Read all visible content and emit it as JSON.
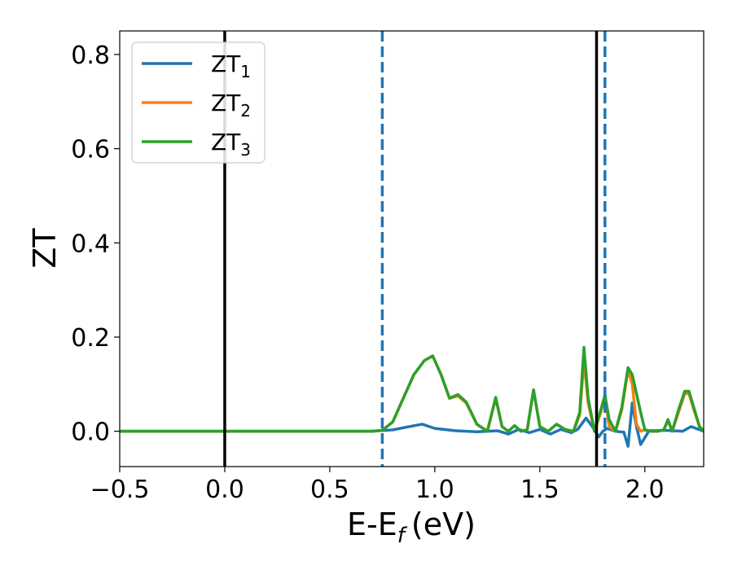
{
  "chart_data": {
    "type": "line",
    "xlabel": "E-E",
    "xlabel_sub": "f",
    "xlabel_unit": "(eV)",
    "ylabel": "ZT",
    "xlim": [
      -0.5,
      2.28
    ],
    "ylim": [
      -0.075,
      0.85
    ],
    "xticks": [
      -0.5,
      0.0,
      0.5,
      1.0,
      1.5,
      2.0
    ],
    "xtick_labels": [
      "−0.5",
      "0.0",
      "0.5",
      "1.0",
      "1.5",
      "2.0"
    ],
    "yticks": [
      0.0,
      0.2,
      0.4,
      0.6,
      0.8
    ],
    "ytick_labels": [
      "0.0",
      "0.2",
      "0.4",
      "0.6",
      "0.8"
    ],
    "grid": false,
    "legend_position": "top-left",
    "vlines": [
      {
        "x": 0.0,
        "style": "solid",
        "color": "#000000"
      },
      {
        "x": 1.77,
        "style": "solid",
        "color": "#000000"
      },
      {
        "x": 0.75,
        "style": "dashed",
        "color": "#1f77b4"
      },
      {
        "x": 1.81,
        "style": "dashed",
        "color": "#1f77b4"
      }
    ],
    "series": [
      {
        "name": "ZT",
        "subscript": "1",
        "color": "#1f77b4",
        "x": [
          -0.5,
          0.7,
          0.8,
          0.88,
          0.94,
          1.0,
          1.1,
          1.2,
          1.3,
          1.35,
          1.4,
          1.45,
          1.5,
          1.55,
          1.6,
          1.65,
          1.68,
          1.72,
          1.75,
          1.78,
          1.8,
          1.82,
          1.86,
          1.9,
          1.92,
          1.94,
          1.96,
          1.98,
          2.02,
          2.1,
          2.18,
          2.22,
          2.28
        ],
        "y": [
          0.0,
          0.0,
          0.003,
          0.01,
          0.015,
          0.006,
          0.001,
          -0.001,
          0.001,
          -0.006,
          0.004,
          -0.003,
          0.004,
          -0.006,
          0.004,
          -0.003,
          0.004,
          0.028,
          0.01,
          -0.012,
          0.0,
          0.006,
          0.0,
          -0.002,
          -0.032,
          0.06,
          0.01,
          -0.028,
          0.001,
          0.002,
          0.0,
          0.01,
          0.0
        ]
      },
      {
        "name": "ZT",
        "subscript": "2",
        "color": "#ff7f0e",
        "x": [
          -0.5,
          0.7,
          0.75,
          0.8,
          0.85,
          0.9,
          0.95,
          0.99,
          1.03,
          1.07,
          1.11,
          1.15,
          1.2,
          1.25,
          1.29,
          1.32,
          1.35,
          1.38,
          1.41,
          1.44,
          1.47,
          1.5,
          1.54,
          1.58,
          1.62,
          1.66,
          1.69,
          1.71,
          1.73,
          1.76,
          1.79,
          1.81,
          1.83,
          1.86,
          1.89,
          1.92,
          1.94,
          1.96,
          1.98,
          2.0,
          2.03,
          2.06,
          2.09,
          2.11,
          2.13,
          2.16,
          2.19,
          2.21,
          2.23,
          2.26,
          2.28
        ],
        "y": [
          0.0,
          0.0,
          0.002,
          0.02,
          0.07,
          0.12,
          0.15,
          0.16,
          0.12,
          0.07,
          0.075,
          0.06,
          0.015,
          0.0,
          0.07,
          0.01,
          0.0,
          0.012,
          0.0,
          0.003,
          0.088,
          0.01,
          0.0,
          0.015,
          0.004,
          0.0,
          0.035,
          0.15,
          0.06,
          0.0,
          0.04,
          0.075,
          0.01,
          0.0,
          0.045,
          0.13,
          0.1,
          0.015,
          0.0,
          0.003,
          0.0,
          0.0,
          0.003,
          0.022,
          0.0,
          0.04,
          0.08,
          0.08,
          0.05,
          0.01,
          0.0
        ]
      },
      {
        "name": "ZT",
        "subscript": "3",
        "color": "#2ca02c",
        "x": [
          -0.5,
          0.7,
          0.75,
          0.8,
          0.85,
          0.9,
          0.95,
          0.99,
          1.03,
          1.07,
          1.11,
          1.15,
          1.2,
          1.25,
          1.29,
          1.32,
          1.35,
          1.38,
          1.41,
          1.44,
          1.47,
          1.5,
          1.54,
          1.58,
          1.62,
          1.66,
          1.69,
          1.71,
          1.73,
          1.76,
          1.79,
          1.81,
          1.83,
          1.86,
          1.89,
          1.92,
          1.94,
          1.96,
          1.98,
          2.0,
          2.03,
          2.06,
          2.09,
          2.11,
          2.13,
          2.16,
          2.19,
          2.21,
          2.23,
          2.26,
          2.28
        ],
        "y": [
          0.0,
          0.0,
          0.002,
          0.02,
          0.07,
          0.12,
          0.15,
          0.16,
          0.12,
          0.07,
          0.078,
          0.062,
          0.015,
          0.0,
          0.072,
          0.01,
          0.0,
          0.012,
          0.0,
          0.003,
          0.088,
          0.01,
          0.0,
          0.015,
          0.004,
          0.0,
          0.04,
          0.178,
          0.07,
          0.0,
          0.045,
          0.077,
          0.025,
          0.0,
          0.05,
          0.135,
          0.12,
          0.08,
          0.04,
          0.003,
          0.0,
          0.0,
          0.003,
          0.025,
          0.0,
          0.045,
          0.085,
          0.085,
          0.055,
          0.01,
          0.0
        ]
      }
    ]
  }
}
